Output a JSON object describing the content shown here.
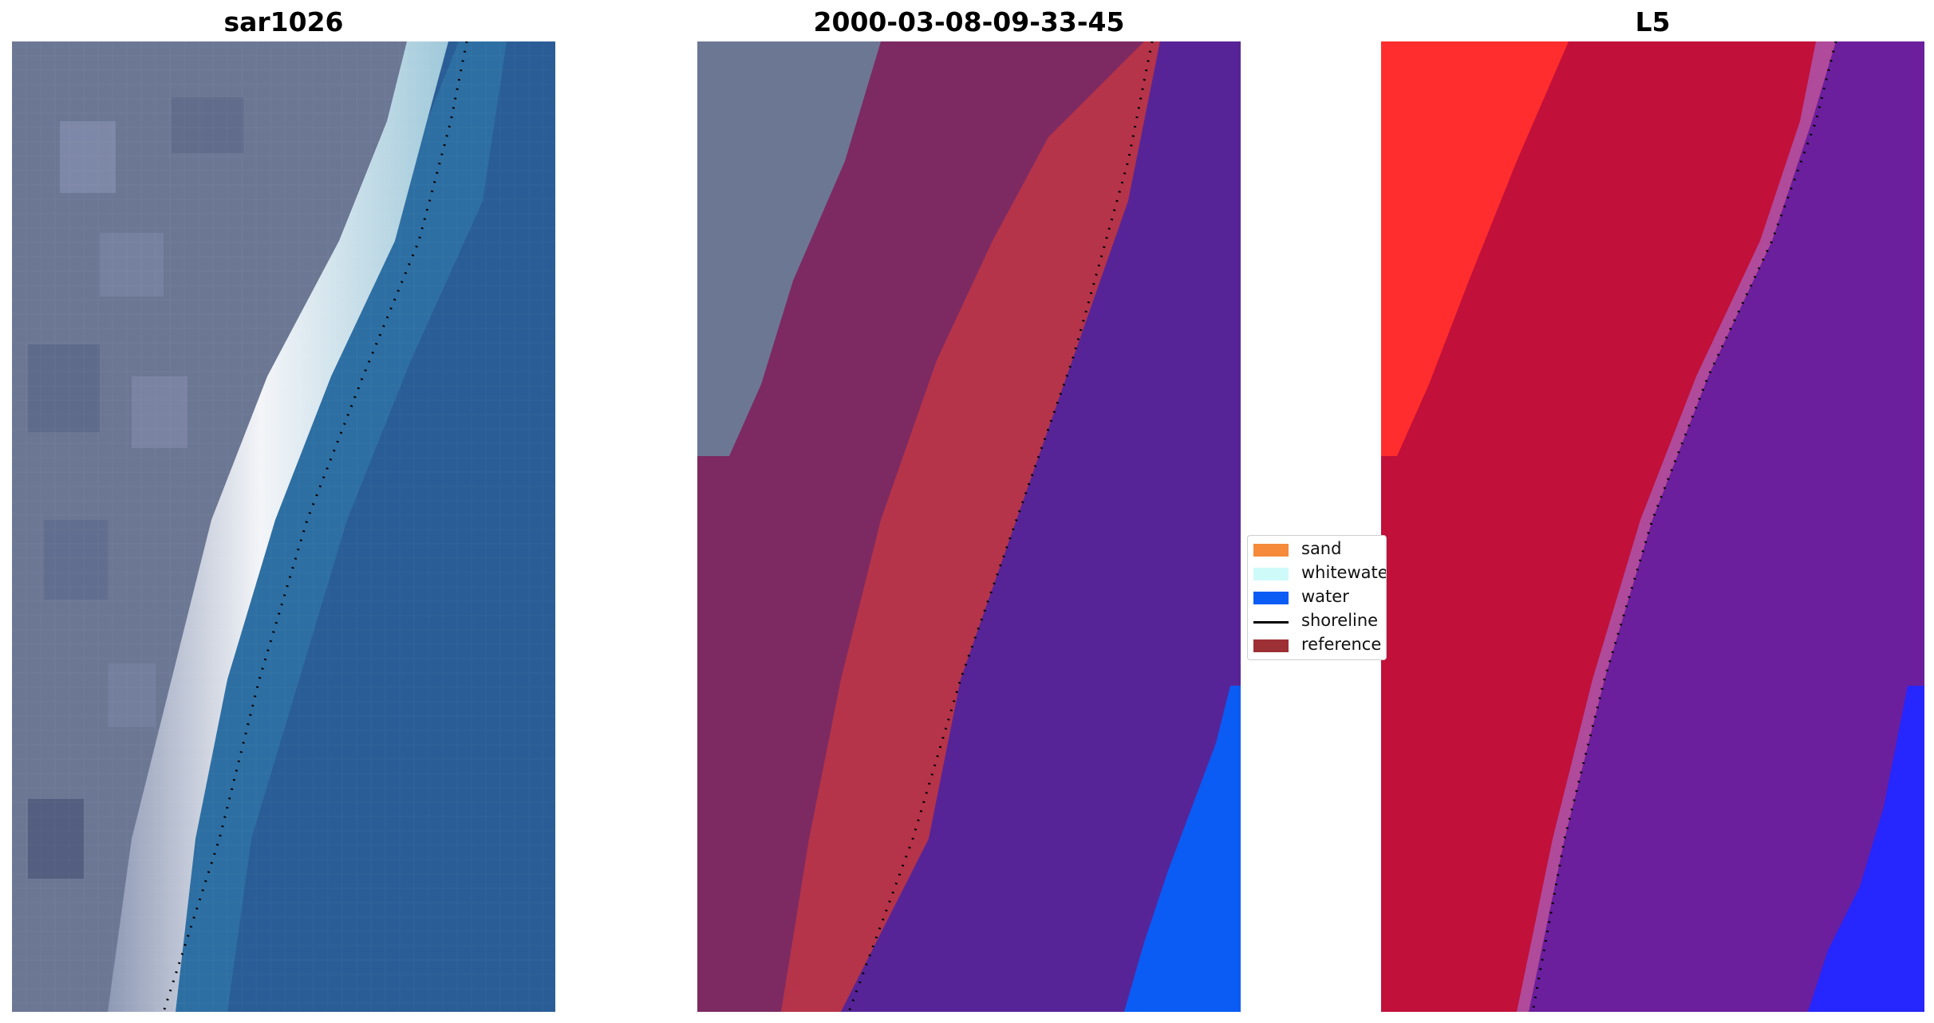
{
  "panels": [
    {
      "title": "sar1026",
      "kind": "rgb"
    },
    {
      "title": "2000-03-08-09-33-45",
      "kind": "classified"
    },
    {
      "title": "L5",
      "kind": "index"
    }
  ],
  "legend": {
    "items": [
      {
        "label": "sand",
        "color": "#f58a3a",
        "type": "patch"
      },
      {
        "label": "whitewater",
        "color": "#cffafa",
        "type": "patch"
      },
      {
        "label": "water",
        "color": "#0a5cf5",
        "type": "patch"
      },
      {
        "label": "shoreline",
        "color": "#000000",
        "type": "line"
      },
      {
        "label": "reference",
        "color": "#9c3034",
        "type": "patch"
      }
    ]
  },
  "colors": {
    "land_rgb": "#6c7794",
    "beach_white": "#e8ecf2",
    "sea_rgb": "#2a5d96",
    "class_land": "#7d2a62",
    "class_reference": "#b5344a",
    "class_sea": "#572497",
    "class_water": "#0a5cf5",
    "index_land_red": "#c1103a",
    "index_bright_red": "#ff2d2d",
    "index_sea_purple": "#6b1f9d",
    "index_blue": "#2626ff"
  }
}
